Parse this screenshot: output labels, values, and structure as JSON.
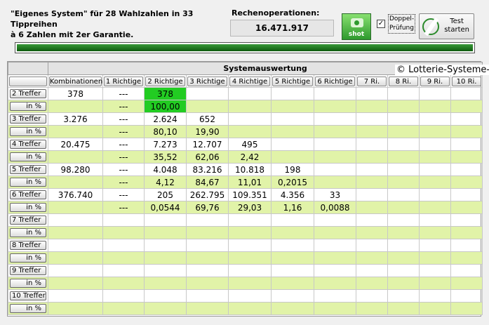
{
  "header": {
    "description": "\"Eigenes System\" für 28 Wahlzahlen in 33 Tippreihen\nà 6 Zahlen mit 2er Garantie.",
    "rechen_label": "Rechenoperationen:",
    "rechen_value": "16.471.917",
    "shot_label": "shot",
    "doppel_checked": true,
    "doppel_label": "Doppel-\nPrüfung",
    "test_label": "Test\nstarten"
  },
  "progress": {
    "percent": 100,
    "color": "#1a6e1a"
  },
  "copyright": "© Lotterie-Systeme-",
  "table": {
    "title": "Systemauswertung",
    "columns": [
      "Kombinationen",
      "1 Richtige",
      "2 Richtige",
      "3 Richtige",
      "4 Richtige",
      "5 Richtige",
      "6 Richtige",
      "7 Ri.",
      "8 Ri.",
      "9 Ri.",
      "10 Ri."
    ],
    "rows": [
      {
        "label": "2 Treffer",
        "pct_label": "in %",
        "values": [
          "378",
          "---",
          "378",
          "",
          "",
          "",
          "",
          "",
          "",
          "",
          ""
        ],
        "pct": [
          "",
          "---",
          "100,00",
          "",
          "",
          "",
          "",
          "",
          "",
          "",
          ""
        ],
        "highlight": 2
      },
      {
        "label": "3 Treffer",
        "pct_label": "in %",
        "values": [
          "3.276",
          "---",
          "2.624",
          "652",
          "",
          "",
          "",
          "",
          "",
          "",
          ""
        ],
        "pct": [
          "",
          "---",
          "80,10",
          "19,90",
          "",
          "",
          "",
          "",
          "",
          "",
          ""
        ]
      },
      {
        "label": "4 Treffer",
        "pct_label": "in %",
        "values": [
          "20.475",
          "---",
          "7.273",
          "12.707",
          "495",
          "",
          "",
          "",
          "",
          "",
          ""
        ],
        "pct": [
          "",
          "---",
          "35,52",
          "62,06",
          "2,42",
          "",
          "",
          "",
          "",
          "",
          ""
        ]
      },
      {
        "label": "5 Treffer",
        "pct_label": "in %",
        "values": [
          "98.280",
          "---",
          "4.048",
          "83.216",
          "10.818",
          "198",
          "",
          "",
          "",
          "",
          ""
        ],
        "pct": [
          "",
          "---",
          "4,12",
          "84,67",
          "11,01",
          "0,2015",
          "",
          "",
          "",
          "",
          ""
        ]
      },
      {
        "label": "6 Treffer",
        "pct_label": "in %",
        "values": [
          "376.740",
          "---",
          "205",
          "262.795",
          "109.351",
          "4.356",
          "33",
          "",
          "",
          "",
          ""
        ],
        "pct": [
          "",
          "---",
          "0,0544",
          "69,76",
          "29,03",
          "1,16",
          "0,0088",
          "",
          "",
          "",
          ""
        ]
      },
      {
        "label": "7 Treffer",
        "pct_label": "in %",
        "values": [
          "",
          "",
          "",
          "",
          "",
          "",
          "",
          "",
          "",
          "",
          ""
        ],
        "pct": [
          "",
          "",
          "",
          "",
          "",
          "",
          "",
          "",
          "",
          "",
          ""
        ]
      },
      {
        "label": "8 Treffer",
        "pct_label": "in %",
        "values": [
          "",
          "",
          "",
          "",
          "",
          "",
          "",
          "",
          "",
          "",
          ""
        ],
        "pct": [
          "",
          "",
          "",
          "",
          "",
          "",
          "",
          "",
          "",
          "",
          ""
        ]
      },
      {
        "label": "9 Treffer",
        "pct_label": "in %",
        "values": [
          "",
          "",
          "",
          "",
          "",
          "",
          "",
          "",
          "",
          "",
          ""
        ],
        "pct": [
          "",
          "",
          "",
          "",
          "",
          "",
          "",
          "",
          "",
          "",
          ""
        ]
      },
      {
        "label": "10 Treffer",
        "pct_label": "in %",
        "values": [
          "",
          "",
          "",
          "",
          "",
          "",
          "",
          "",
          "",
          "",
          ""
        ],
        "pct": [
          "",
          "",
          "",
          "",
          "",
          "",
          "",
          "",
          "",
          "",
          ""
        ]
      }
    ]
  }
}
